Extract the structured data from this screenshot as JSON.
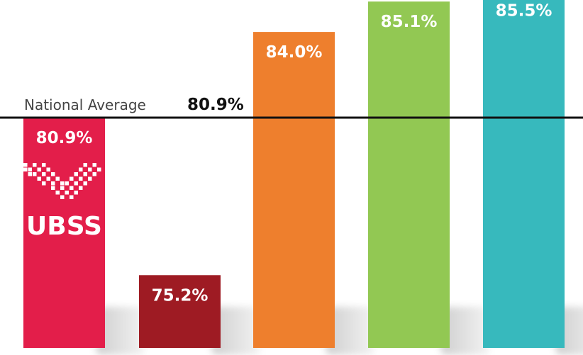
{
  "chart_data": {
    "type": "bar",
    "values": [
      80.9,
      75.2,
      84.0,
      85.1,
      85.5
    ],
    "value_labels": [
      "80.9%",
      "75.2%",
      "84.0%",
      "85.1%",
      "85.5%"
    ],
    "colors": [
      "#e31e4a",
      "#9e1b23",
      "#ee7f2d",
      "#92c853",
      "#37b9bd"
    ],
    "ylim": [
      60,
      91
    ],
    "reference_line": {
      "caption": "National Average",
      "value": 80.9,
      "value_label": "80.9%"
    },
    "logo": {
      "text": "UBSS",
      "bar_index": 0
    },
    "grid": false,
    "legend": "none"
  }
}
